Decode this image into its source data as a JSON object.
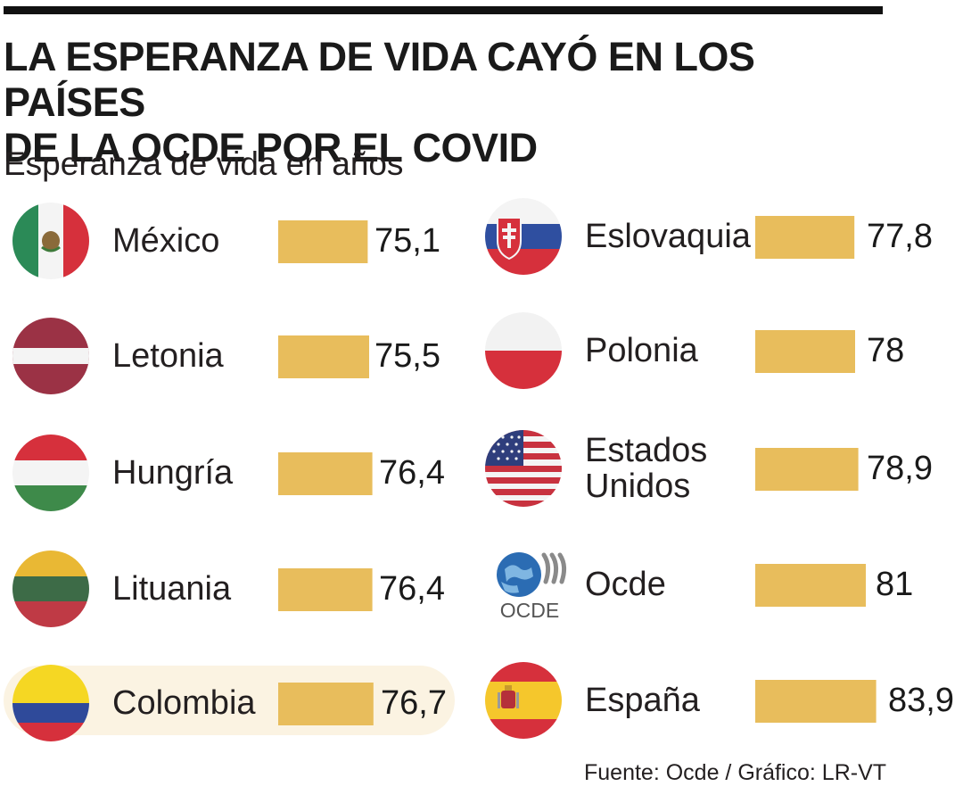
{
  "header": {
    "title_line1": "LA ESPERANZA DE VIDA CAYÓ EN LOS PAÍSES",
    "title_line2": "DE LA OCDE POR EL COVID",
    "subtitle": "Esperanza de vida en años"
  },
  "source": "Fuente: Ocde / Gráfico: LR-VT",
  "colors": {
    "bar": "#e8bd5c",
    "highlight": "#fbf3e2",
    "text": "#231f20"
  },
  "chart_data": {
    "type": "bar",
    "title": "LA ESPERANZA DE VIDA CAYÓ EN LOS PAÍSES DE LA OCDE POR EL COVID",
    "ylabel": "Esperanza de vida en años",
    "categories": [
      "México",
      "Letonia",
      "Hungría",
      "Lituania",
      "Colombia",
      "Eslovaquia",
      "Polonia",
      "Estados Unidos",
      "Ocde",
      "España"
    ],
    "values": [
      75.1,
      75.5,
      76.4,
      76.4,
      76.7,
      77.8,
      78,
      78.9,
      81,
      83.9
    ],
    "value_labels": [
      "75,1",
      "75,5",
      "76,4",
      "76,4",
      "76,7",
      "77,8",
      "78",
      "78,9",
      "81",
      "83,9"
    ],
    "highlighted": "Colombia",
    "xlim": [
      70,
      85
    ]
  },
  "flags": {
    "ocde_logo_text": "OCDE"
  }
}
